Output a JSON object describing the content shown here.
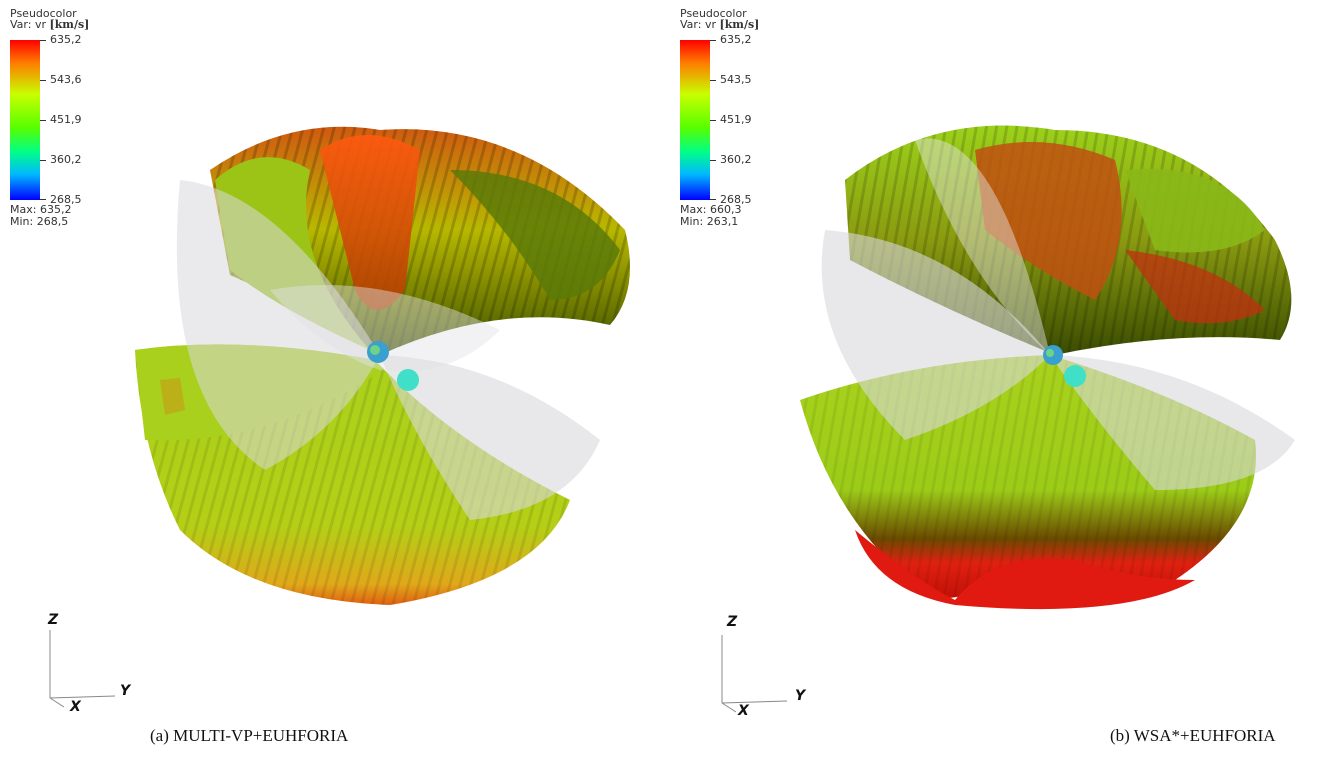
{
  "panels": [
    {
      "legend": {
        "title": "Pseudocolor",
        "var_prefix": "Var: vr ",
        "var_unit": "[km/s]",
        "ticks": [
          "635,2",
          "543,6",
          "451,9",
          "360,2",
          "268,5"
        ],
        "max_label": "Max:",
        "max_value": "635,2",
        "min_label": "Min:",
        "min_value": "268,5"
      },
      "axes": {
        "z": "Z",
        "y": "Y",
        "x": "X"
      },
      "caption": "(a) MULTI-VP+EUHFORIA"
    },
    {
      "legend": {
        "title": "Pseudocolor",
        "var_prefix": "Var: vr ",
        "var_unit": "[km/s]",
        "ticks": [
          "635,2",
          "543,5",
          "451,9",
          "360,2",
          "268,5"
        ],
        "max_label": "Max:",
        "max_value": "660,3",
        "min_label": "Min:",
        "min_value": "263,1"
      },
      "axes": {
        "z": "Z",
        "y": "Y",
        "x": "X"
      },
      "caption": "(b) WSA*+EUHFORIA"
    }
  ],
  "colors": {
    "high": "#ff0000",
    "mid_high": "#ff7a00",
    "mid": "#c8ff00",
    "mid_low": "#00ff88",
    "low": "#0000ff",
    "surface_green": "#9fcf1a",
    "surface_dark": "#3a4a00",
    "transparent_sheet": "#d9d9dd",
    "sun": "#40e0c8"
  }
}
